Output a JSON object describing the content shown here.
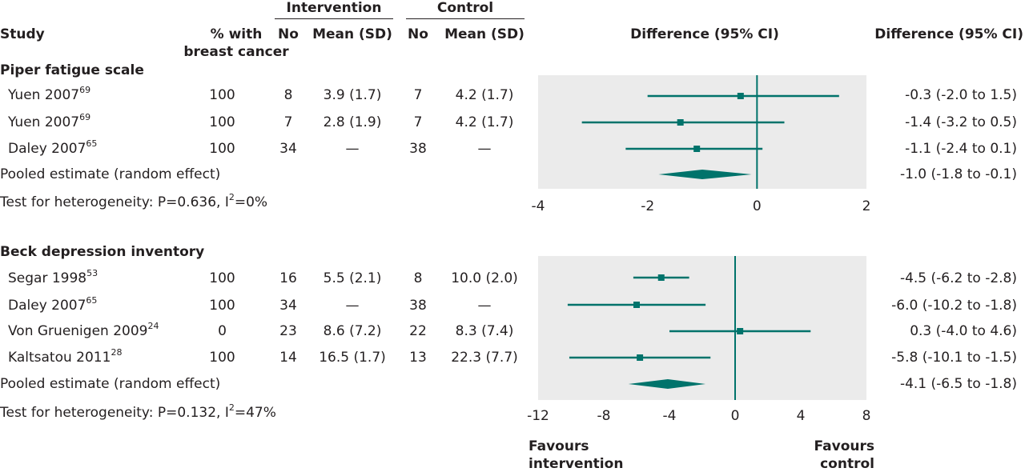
{
  "header": {
    "intervention_label": "Intervention",
    "control_label": "Control",
    "study_label": "Study",
    "pct_label_line1": "% with",
    "pct_label_line2": "breast cancer",
    "no_label": "No",
    "mean_sd_label": "Mean (SD)",
    "difference_ci_label": "Difference (95% CI)"
  },
  "colors": {
    "accent": "#00736b",
    "panel_bg": "#ebebeb",
    "text": "#231f20"
  },
  "chart_data": [
    {
      "type": "forest",
      "title": "Piper fatigue scale",
      "xlim": [
        -4,
        2
      ],
      "xticks": [
        "-4",
        "-2",
        "0",
        "2"
      ],
      "studies": [
        {
          "name": "Yuen 2007",
          "ref": "69",
          "pct": "100",
          "int_no": "8",
          "int_mean": "3.9 (1.7)",
          "ctl_no": "7",
          "ctl_mean": "4.2 (1.7)",
          "est": -0.3,
          "lo": -2.0,
          "hi": 1.5,
          "label": "-0.3 (-2.0 to 1.5)"
        },
        {
          "name": "Yuen 2007",
          "ref": "69",
          "pct": "100",
          "int_no": "7",
          "int_mean": "2.8 (1.9)",
          "ctl_no": "7",
          "ctl_mean": "4.2 (1.7)",
          "est": -1.4,
          "lo": -3.2,
          "hi": 0.5,
          "label": "-1.4 (-3.2 to 0.5)"
        },
        {
          "name": "Daley 2007",
          "ref": "65",
          "pct": "100",
          "int_no": "34",
          "int_mean": "—",
          "ctl_no": "38",
          "ctl_mean": "—",
          "est": -1.1,
          "lo": -2.4,
          "hi": 0.1,
          "label": "-1.1 (-2.4 to 0.1)"
        }
      ],
      "pooled": {
        "name": "Pooled estimate (random effect)",
        "est": -1.0,
        "lo": -1.8,
        "hi": -0.1,
        "label": "-1.0 (-1.8 to -0.1)"
      },
      "heterogeneity": {
        "prefix": "Test for heterogeneity: P=0.636, I",
        "sup": "2",
        "suffix": "=0%"
      }
    },
    {
      "type": "forest",
      "title": "Beck depression inventory",
      "xlim": [
        -12,
        8
      ],
      "xticks": [
        "-12",
        "-8",
        "-4",
        "0",
        "4",
        "8"
      ],
      "studies": [
        {
          "name": "Segar 1998",
          "ref": "53",
          "pct": "100",
          "int_no": "16",
          "int_mean": "5.5 (2.1)",
          "ctl_no": "8",
          "ctl_mean": "10.0 (2.0)",
          "est": -4.5,
          "lo": -6.2,
          "hi": -2.8,
          "label": "-4.5 (-6.2 to -2.8)"
        },
        {
          "name": "Daley 2007",
          "ref": "65",
          "pct": "100",
          "int_no": "34",
          "int_mean": "—",
          "ctl_no": "38",
          "ctl_mean": "—",
          "est": -6.0,
          "lo": -10.2,
          "hi": -1.8,
          "label": "-6.0 (-10.2 to -1.8)"
        },
        {
          "name": "Von Gruenigen 2009",
          "ref": "24",
          "pct": "0",
          "int_no": "23",
          "int_mean": "8.6 (7.2)",
          "ctl_no": "22",
          "ctl_mean": "8.3 (7.4)",
          "est": 0.3,
          "lo": -4.0,
          "hi": 4.6,
          "label": "0.3 (-4.0 to 4.6)"
        },
        {
          "name": "Kaltsatou 2011",
          "ref": "28",
          "pct": "100",
          "int_no": "14",
          "int_mean": "16.5 (1.7)",
          "ctl_no": "13",
          "ctl_mean": "22.3 (7.7)",
          "est": -5.8,
          "lo": -10.1,
          "hi": -1.5,
          "label": "-5.8 (-10.1 to -1.5)"
        }
      ],
      "pooled": {
        "name": "Pooled estimate (random effect)",
        "est": -4.1,
        "lo": -6.5,
        "hi": -1.8,
        "label": "-4.1 (-6.5 to -1.8)"
      },
      "heterogeneity": {
        "prefix": "Test for heterogeneity: P=0.132, I",
        "sup": "2",
        "suffix": "=47%"
      }
    }
  ],
  "footer": {
    "favours_left_1": "Favours",
    "favours_left_2": "intervention",
    "favours_right_1": "Favours",
    "favours_right_2": "control"
  }
}
